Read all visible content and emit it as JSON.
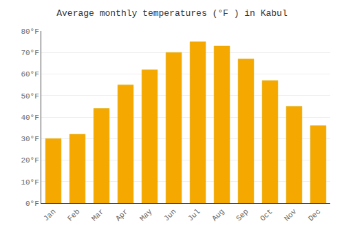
{
  "chart_data": {
    "type": "bar",
    "title": "Average monthly temperatures (°F ) in Kabul",
    "categories": [
      "Jan",
      "Feb",
      "Mar",
      "Apr",
      "May",
      "Jun",
      "Jul",
      "Aug",
      "Sep",
      "Oct",
      "Nov",
      "Dec"
    ],
    "values": [
      30,
      32,
      44,
      55,
      62,
      70,
      75,
      73,
      67,
      57,
      45,
      36
    ],
    "color": "#F5A800",
    "ylim": [
      0,
      80
    ],
    "yticks": [
      {
        "value": 0,
        "label": "0°F"
      },
      {
        "value": 10,
        "label": "10°F"
      },
      {
        "value": 20,
        "label": "20°F"
      },
      {
        "value": 30,
        "label": "30°F"
      },
      {
        "value": 40,
        "label": "40°F"
      },
      {
        "value": 50,
        "label": "50°F"
      },
      {
        "value": 60,
        "label": "60°F"
      },
      {
        "value": 70,
        "label": "70°F"
      },
      {
        "value": 80,
        "label": "80°F"
      }
    ],
    "grid": true
  }
}
